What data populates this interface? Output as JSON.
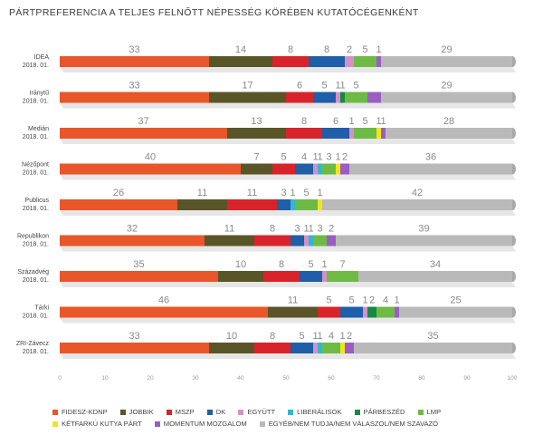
{
  "chart_data": {
    "type": "bar",
    "title": "PÁRTPREFERENCIA A TELJES FELNŐTT NÉPESSÉG KÖRÉBEN KUTATÓCÉGENKÉNT",
    "stacked": true,
    "orientation": "horizontal",
    "xlim": [
      0,
      100
    ],
    "xticks": [
      0,
      10,
      20,
      30,
      40,
      50,
      60,
      70,
      80,
      90,
      100
    ],
    "legend_position": "bottom",
    "categories": [
      [
        "IDEA",
        "2018. 01."
      ],
      [
        "Iránytű",
        "2018. 01."
      ],
      [
        "Medián",
        "2018. 01."
      ],
      [
        "Nézőpont",
        "2018. 01."
      ],
      [
        "Publicus",
        "2018. 01."
      ],
      [
        "Republikon",
        "2018. 01."
      ],
      [
        "Századvég",
        "2018. 01."
      ],
      [
        "Tárki",
        "2018. 01."
      ],
      [
        "ZRI-Závecz",
        "2018. 01."
      ]
    ],
    "series": [
      {
        "name": "FIDESZ-KDNP",
        "color": "#e8562a",
        "values": [
          33,
          33,
          37,
          40,
          26,
          32,
          35,
          46,
          33
        ]
      },
      {
        "name": "JOBBIK",
        "color": "#5a5528",
        "values": [
          14,
          17,
          13,
          7,
          11,
          11,
          10,
          11,
          10
        ]
      },
      {
        "name": "MSZP",
        "color": "#d8232a",
        "values": [
          8,
          6,
          8,
          5,
          11,
          8,
          8,
          5,
          8
        ]
      },
      {
        "name": "DK",
        "color": "#1f5ea8",
        "values": [
          8,
          5,
          6,
          4,
          3,
          3,
          5,
          5,
          5
        ]
      },
      {
        "name": "EGYÜTT",
        "color": "#d78fc9",
        "values": [
          2,
          1,
          1,
          1,
          0,
          1,
          1,
          1,
          1
        ]
      },
      {
        "name": "LIBERÁLISOK",
        "color": "#2fb8d1",
        "values": [
          0,
          0,
          0,
          1,
          1,
          1,
          0,
          0,
          1
        ]
      },
      {
        "name": "PÁRBESZÉD",
        "color": "#168a45",
        "values": [
          0,
          1,
          0,
          0,
          0,
          0,
          0,
          2,
          0
        ]
      },
      {
        "name": "LMP",
        "color": "#6dbb45",
        "values": [
          5,
          5,
          5,
          3,
          5,
          3,
          7,
          4,
          4
        ]
      },
      {
        "name": "KÉTFARKÚ KUTYA PÁRT",
        "color": "#f4e51a",
        "values": [
          0,
          0,
          1,
          1,
          1,
          0,
          0,
          0,
          1
        ]
      },
      {
        "name": "MOMENTUM MOZGALOM",
        "color": "#9a5ec2",
        "values": [
          1,
          3,
          1,
          2,
          0,
          2,
          0,
          1,
          2
        ]
      },
      {
        "name": "EGYÉB/NEM TUDJA/NEM VÁLASZOL/NEM SZAVAZÓ",
        "color": "#b9b9b9",
        "values": [
          29,
          29,
          28,
          36,
          42,
          39,
          34,
          25,
          35
        ]
      }
    ],
    "bar_labels": [
      [
        [
          0,
          "33"
        ],
        [
          1,
          "14"
        ],
        [
          2,
          "8"
        ],
        [
          3,
          "8"
        ],
        [
          4,
          "2"
        ],
        [
          7,
          "5"
        ],
        [
          9,
          "1"
        ],
        [
          10,
          "29"
        ]
      ],
      [
        [
          0,
          "33"
        ],
        [
          1,
          "17"
        ],
        [
          2,
          "6"
        ],
        [
          3,
          "5"
        ],
        [
          4,
          "1"
        ],
        [
          6,
          "1"
        ],
        [
          7,
          "5"
        ],
        [
          10,
          "29"
        ]
      ],
      [
        [
          0,
          "37"
        ],
        [
          1,
          "13"
        ],
        [
          2,
          "8"
        ],
        [
          3,
          "6"
        ],
        [
          4,
          "1"
        ],
        [
          7,
          "5"
        ],
        [
          8,
          "1"
        ],
        [
          9,
          "1"
        ],
        [
          10,
          "28"
        ]
      ],
      [
        [
          0,
          "40"
        ],
        [
          1,
          "7"
        ],
        [
          2,
          "5"
        ],
        [
          3,
          "4"
        ],
        [
          4,
          "1"
        ],
        [
          5,
          "1"
        ],
        [
          7,
          "3"
        ],
        [
          8,
          "1"
        ],
        [
          9,
          "2"
        ],
        [
          10,
          "36"
        ]
      ],
      [
        [
          0,
          "26"
        ],
        [
          1,
          "11"
        ],
        [
          2,
          "11"
        ],
        [
          3,
          "3"
        ],
        [
          5,
          "1"
        ],
        [
          7,
          "5"
        ],
        [
          8,
          "1"
        ],
        [
          10,
          "42"
        ]
      ],
      [
        [
          0,
          "32"
        ],
        [
          1,
          "11"
        ],
        [
          2,
          "8"
        ],
        [
          3,
          "3"
        ],
        [
          4,
          "1"
        ],
        [
          5,
          "1"
        ],
        [
          7,
          "3"
        ],
        [
          9,
          "2"
        ],
        [
          10,
          "39"
        ]
      ],
      [
        [
          0,
          "35"
        ],
        [
          1,
          "10"
        ],
        [
          2,
          "8"
        ],
        [
          3,
          "5"
        ],
        [
          4,
          "1"
        ],
        [
          7,
          "7"
        ],
        [
          10,
          "34"
        ]
      ],
      [
        [
          0,
          "46"
        ],
        [
          1,
          "11"
        ],
        [
          2,
          "5"
        ],
        [
          3,
          "5"
        ],
        [
          4,
          "1"
        ],
        [
          6,
          "2"
        ],
        [
          7,
          "4"
        ],
        [
          9,
          "1"
        ],
        [
          10,
          "25"
        ]
      ],
      [
        [
          0,
          "33"
        ],
        [
          1,
          "10"
        ],
        [
          2,
          "8"
        ],
        [
          3,
          "5"
        ],
        [
          4,
          "1"
        ],
        [
          5,
          "1"
        ],
        [
          7,
          "4"
        ],
        [
          8,
          "1"
        ],
        [
          9,
          "2"
        ],
        [
          10,
          "35"
        ]
      ]
    ]
  }
}
